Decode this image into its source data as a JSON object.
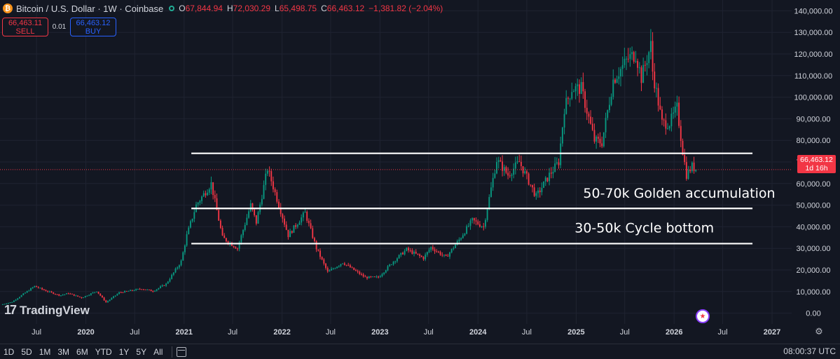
{
  "header": {
    "logo_glyph": "₿",
    "symbol_title": "Bitcoin / U.S. Dollar · 1W · Coinbase",
    "ohlc": [
      {
        "label": "O",
        "value": "67,844.94"
      },
      {
        "label": "H",
        "value": "72,030.29"
      },
      {
        "label": "L",
        "value": "65,498.75"
      },
      {
        "label": "C",
        "value": "66,463.12"
      }
    ],
    "change": "−1,381.82 (−2.04%)"
  },
  "trade": {
    "sell_price": "66,463.11",
    "sell_label": "SELL",
    "spread": "0.01",
    "buy_price": "66,463.12",
    "buy_label": "BUY"
  },
  "price_label": {
    "price": "66,463.12",
    "countdown": "1d 16h"
  },
  "branding": {
    "name": "TradingView",
    "mark": "17"
  },
  "bottom_bar": {
    "ranges": [
      "1D",
      "5D",
      "1M",
      "3M",
      "6M",
      "YTD",
      "1Y",
      "5Y",
      "All"
    ],
    "clock": "08:00:37 UTC"
  },
  "colors": {
    "background": "#131722",
    "up": "#089981",
    "down": "#f23645",
    "text": "#d1d4dc",
    "grid": "#1f2331",
    "level_line": "#ffffff"
  },
  "chart_data": {
    "type": "candlestick",
    "title": "Bitcoin / U.S. Dollar · 1W · Coinbase",
    "xlabel": "",
    "ylabel": "",
    "ylim": [
      -5000,
      145000
    ],
    "y_ticks": [
      "0.00",
      "10,000.00",
      "20,000.00",
      "30,000.00",
      "40,000.00",
      "50,000.00",
      "60,000.00",
      "70,000.00",
      "80,000.00",
      "90,000.00",
      "100,000.00",
      "110,000.00",
      "120,000.00",
      "130,000.00",
      "140,000.00"
    ],
    "y_tick_values": [
      0,
      10000,
      20000,
      30000,
      40000,
      50000,
      60000,
      70000,
      80000,
      90000,
      100000,
      110000,
      120000,
      130000,
      140000
    ],
    "x_ticks": [
      {
        "label": "Jul",
        "date": "2019-07-01",
        "bold": false
      },
      {
        "label": "2020",
        "date": "2020-01-01",
        "bold": true
      },
      {
        "label": "Jul",
        "date": "2020-07-01",
        "bold": false
      },
      {
        "label": "2021",
        "date": "2021-01-01",
        "bold": true
      },
      {
        "label": "Jul",
        "date": "2021-07-01",
        "bold": false
      },
      {
        "label": "2022",
        "date": "2022-01-01",
        "bold": true
      },
      {
        "label": "Jul",
        "date": "2022-07-01",
        "bold": false
      },
      {
        "label": "2023",
        "date": "2023-01-01",
        "bold": true
      },
      {
        "label": "Jul",
        "date": "2023-07-01",
        "bold": false
      },
      {
        "label": "2024",
        "date": "2024-01-01",
        "bold": true
      },
      {
        "label": "Jul",
        "date": "2024-07-01",
        "bold": false
      },
      {
        "label": "2025",
        "date": "2025-01-01",
        "bold": true
      },
      {
        "label": "Jul",
        "date": "2025-07-01",
        "bold": false
      },
      {
        "label": "2026",
        "date": "2026-01-01",
        "bold": true
      },
      {
        "label": "Jul",
        "date": "2026-07-01",
        "bold": false
      },
      {
        "label": "2027",
        "date": "2027-01-01",
        "bold": true
      }
    ],
    "x_range": [
      "2019-02-15",
      "2027-03-15"
    ],
    "price_path": [
      [
        "2019-02-18",
        3900
      ],
      [
        "2019-04-01",
        5200
      ],
      [
        "2019-06-24",
        12500
      ],
      [
        "2019-08-01",
        10500
      ],
      [
        "2019-09-26",
        8200
      ],
      [
        "2019-10-28",
        9200
      ],
      [
        "2019-12-16",
        7100
      ],
      [
        "2020-02-10",
        10200
      ],
      [
        "2020-03-16",
        5000
      ],
      [
        "2020-05-04",
        9500
      ],
      [
        "2020-07-27",
        11300
      ],
      [
        "2020-09-07",
        10200
      ],
      [
        "2020-10-26",
        13500
      ],
      [
        "2020-12-21",
        24000
      ],
      [
        "2021-01-11",
        36000
      ],
      [
        "2021-02-15",
        50000
      ],
      [
        "2021-04-12",
        60000
      ],
      [
        "2021-05-24",
        35000
      ],
      [
        "2021-07-19",
        30000
      ],
      [
        "2021-09-06",
        50000
      ],
      [
        "2021-09-27",
        42000
      ],
      [
        "2021-11-08",
        67000
      ],
      [
        "2022-01-24",
        36000
      ],
      [
        "2022-03-28",
        46500
      ],
      [
        "2022-05-09",
        30000
      ],
      [
        "2022-06-20",
        19000
      ],
      [
        "2022-08-15",
        23500
      ],
      [
        "2022-11-07",
        16500
      ],
      [
        "2022-12-26",
        16600
      ],
      [
        "2023-02-20",
        24000
      ],
      [
        "2023-04-10",
        29500
      ],
      [
        "2023-06-12",
        25500
      ],
      [
        "2023-07-10",
        30500
      ],
      [
        "2023-09-04",
        25800
      ],
      [
        "2023-10-23",
        34000
      ],
      [
        "2023-12-11",
        43000
      ],
      [
        "2024-01-22",
        40000
      ],
      [
        "2024-03-11",
        71000
      ],
      [
        "2024-04-22",
        64000
      ],
      [
        "2024-06-03",
        70000
      ],
      [
        "2024-08-05",
        54000
      ],
      [
        "2024-09-23",
        64000
      ],
      [
        "2024-10-28",
        70000
      ],
      [
        "2024-11-18",
        95000
      ],
      [
        "2024-12-16",
        104000
      ],
      [
        "2025-01-20",
        104000
      ],
      [
        "2025-03-10",
        80000
      ],
      [
        "2025-04-07",
        79000
      ],
      [
        "2025-05-19",
        108000
      ],
      [
        "2025-07-14",
        118000
      ],
      [
        "2025-08-11",
        120000
      ],
      [
        "2025-09-01",
        109000
      ],
      [
        "2025-10-06",
        124000
      ],
      [
        "2025-10-13",
        112000
      ],
      [
        "2025-11-17",
        88000
      ],
      [
        "2025-12-15",
        88000
      ],
      [
        "2026-01-12",
        95000
      ],
      [
        "2026-02-02",
        75000
      ],
      [
        "2026-02-16",
        64000
      ],
      [
        "2026-03-09",
        68000
      ],
      [
        "2026-03-23",
        66463
      ]
    ],
    "last_close": 66463.12,
    "levels": [
      {
        "value": 74000
      },
      {
        "value": 48500
      },
      {
        "value": 32200
      }
    ],
    "annotations": [
      {
        "text": "50-70k Golden accumulation",
        "date": "2026-01-20",
        "y": 53500
      },
      {
        "text": "30-50k Cycle bottom",
        "date": "2025-09-12",
        "y": 37400
      }
    ]
  }
}
